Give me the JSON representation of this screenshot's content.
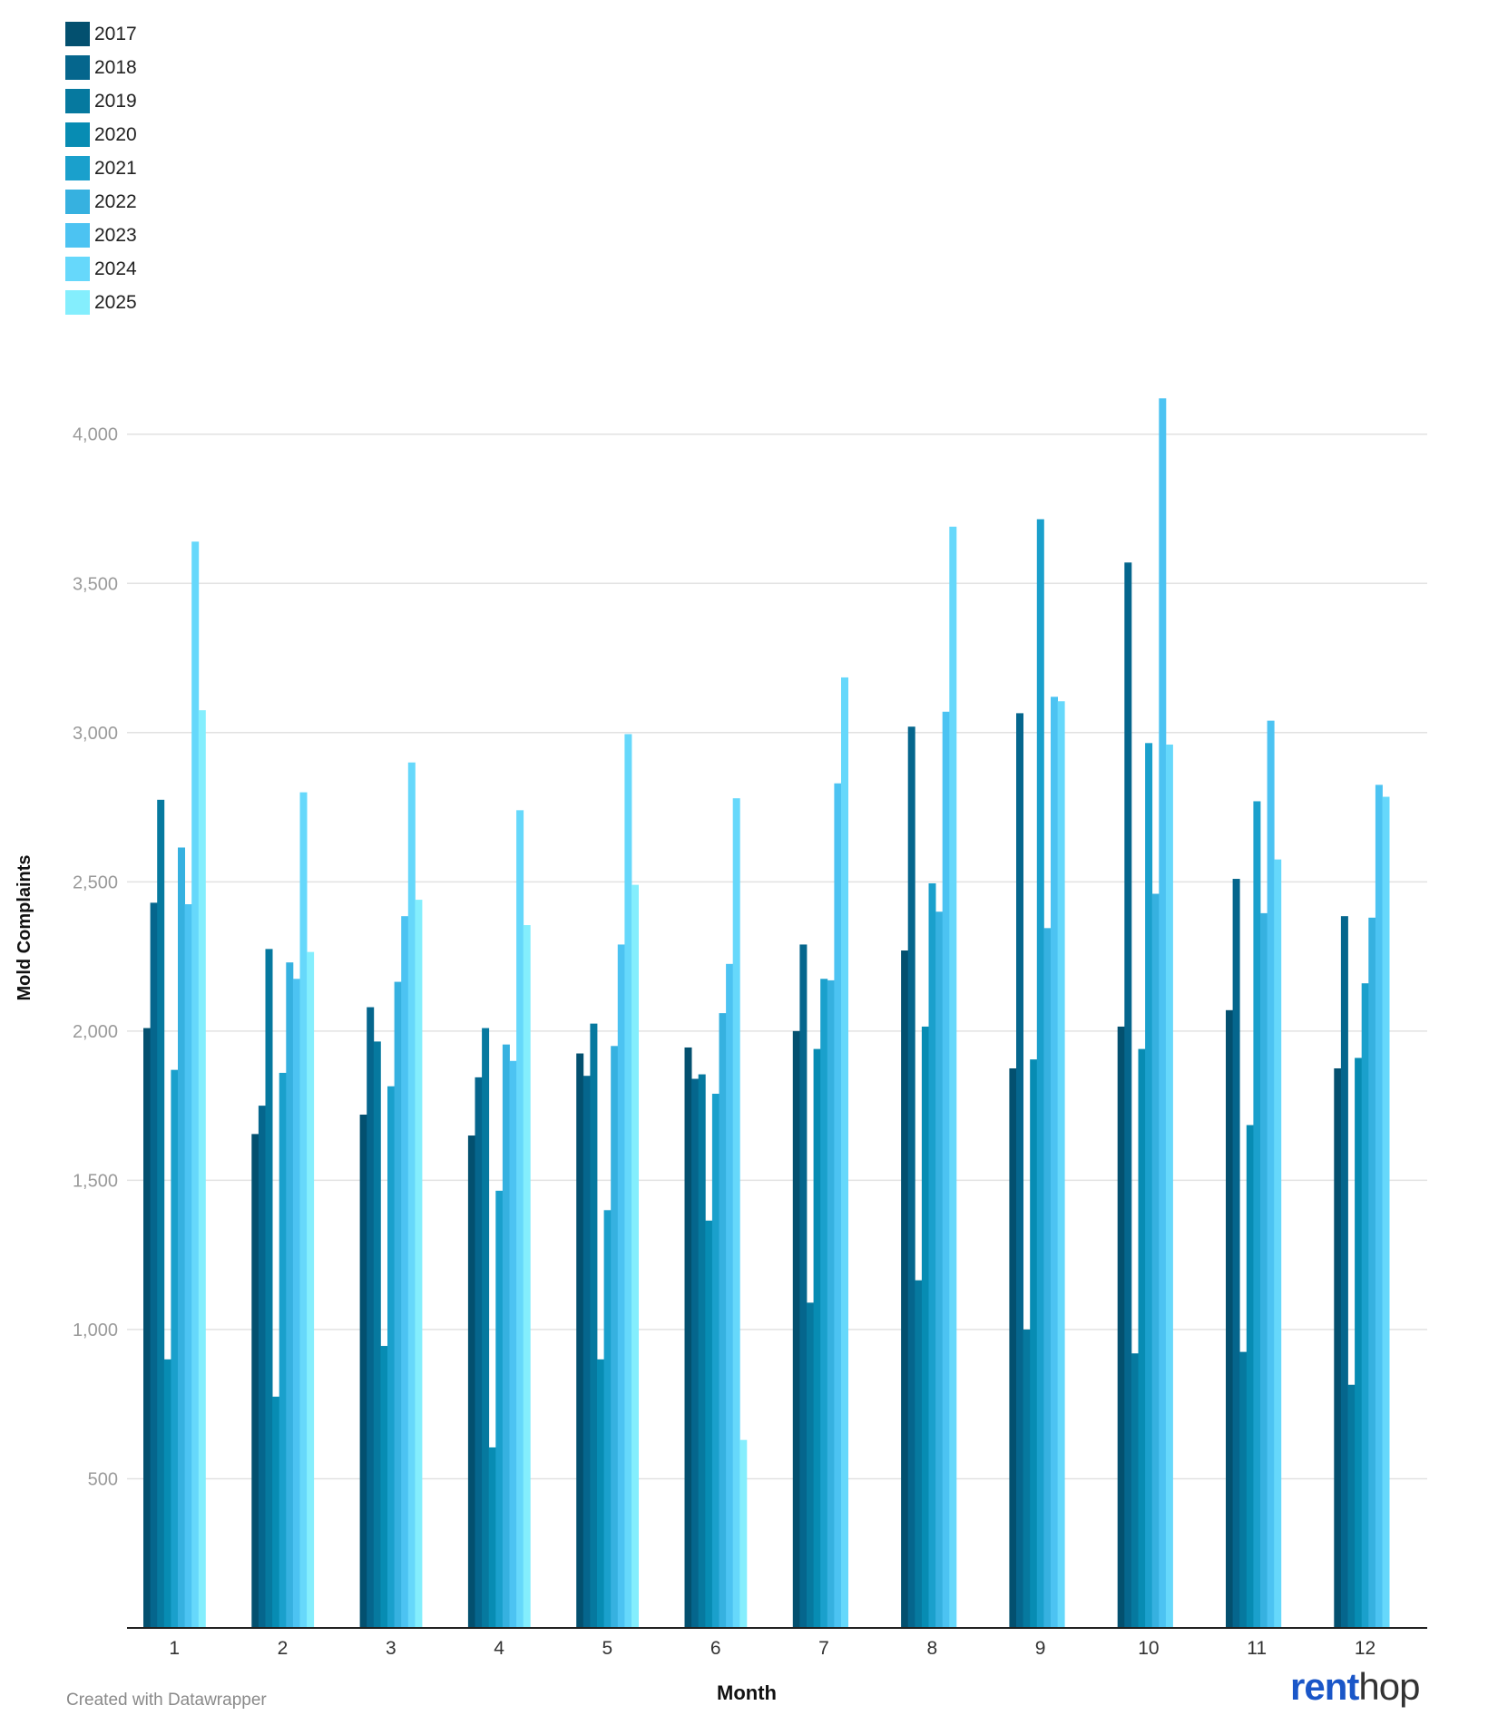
{
  "chart_data": {
    "type": "bar",
    "xlabel": "Month",
    "ylabel": "Mold Complaints",
    "ylim": [
      0,
      4300
    ],
    "yticks": [
      500,
      1000,
      1500,
      2000,
      2500,
      3000,
      3500,
      4000
    ],
    "ytick_labels": [
      "500",
      "1,000",
      "1,500",
      "2,000",
      "2,500",
      "3,000",
      "3,500",
      "4,000"
    ],
    "grid": true,
    "legend_position": "top-left",
    "categories": [
      "1",
      "2",
      "3",
      "4",
      "5",
      "6",
      "7",
      "8",
      "9",
      "10",
      "11",
      "12"
    ],
    "series": [
      {
        "name": "2017",
        "color": "#03506f",
        "values": [
          2010,
          1655,
          1720,
          1650,
          1925,
          1945,
          2000,
          2270,
          1875,
          2015,
          2070,
          1875
        ]
      },
      {
        "name": "2018",
        "color": "#05668d",
        "values": [
          2430,
          1750,
          2080,
          1845,
          1850,
          1840,
          2290,
          3020,
          3065,
          3570,
          2510,
          2385
        ]
      },
      {
        "name": "2019",
        "color": "#06799f",
        "values": [
          2775,
          2275,
          1965,
          2010,
          2025,
          1855,
          1090,
          1165,
          1000,
          920,
          925,
          815
        ]
      },
      {
        "name": "2020",
        "color": "#078cb3",
        "values": [
          900,
          775,
          945,
          605,
          900,
          1365,
          1940,
          2015,
          1905,
          1940,
          1685,
          1910
        ]
      },
      {
        "name": "2021",
        "color": "#1aa0cc",
        "values": [
          1870,
          1860,
          1815,
          1465,
          1400,
          1790,
          2175,
          2495,
          3715,
          2965,
          2770,
          2160
        ]
      },
      {
        "name": "2022",
        "color": "#36b1e0",
        "values": [
          2615,
          2230,
          2165,
          1955,
          1950,
          2060,
          2170,
          2400,
          2345,
          2460,
          2395,
          2380
        ]
      },
      {
        "name": "2023",
        "color": "#4cc3f2",
        "values": [
          2425,
          2175,
          2385,
          1900,
          2290,
          2225,
          2830,
          3070,
          3120,
          4120,
          3040,
          2825
        ]
      },
      {
        "name": "2024",
        "color": "#66d8fb",
        "values": [
          3640,
          2800,
          2900,
          2740,
          2995,
          2780,
          3185,
          3690,
          3105,
          2960,
          2575,
          2785
        ]
      },
      {
        "name": "2025",
        "color": "#84eefd",
        "values": [
          3075,
          2265,
          2440,
          2355,
          2490,
          630,
          null,
          null,
          null,
          null,
          null,
          null
        ]
      }
    ]
  },
  "footer": {
    "credit": "Created with Datawrapper"
  },
  "logo": {
    "part1": "rent",
    "part2": "hop"
  }
}
